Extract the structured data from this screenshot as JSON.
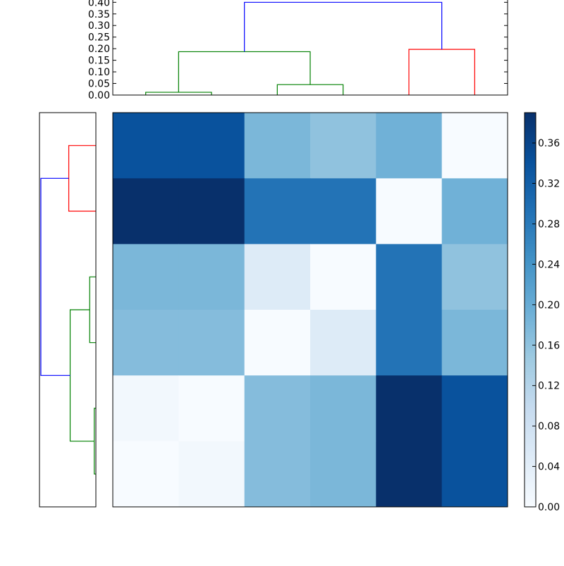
{
  "chart_data": [
    {
      "type": "dendrogram",
      "panel": "top",
      "orientation": "top",
      "title": "",
      "ylabel": "",
      "ylim": [
        0.0,
        0.41
      ],
      "yticks": [
        "0.00",
        "0.05",
        "0.10",
        "0.15",
        "0.20",
        "0.25",
        "0.30",
        "0.35",
        "0.40"
      ],
      "leaf_count": 6,
      "links": [
        {
          "left_leaf": 0,
          "right_leaf": 1,
          "height": 0.012,
          "color": "#008000"
        },
        {
          "left_leaf": 2,
          "right_leaf": 3,
          "height": 0.045,
          "color": "#008000"
        },
        {
          "left": "cluster(0,1)",
          "right": "cluster(2,3)",
          "height": 0.187,
          "color": "#008000"
        },
        {
          "left_leaf": 4,
          "right_leaf": 5,
          "height": 0.197,
          "color": "#ff0000"
        },
        {
          "left": "cluster(0-3)",
          "right": "cluster(4,5)",
          "height": 0.4,
          "color": "#0000ff"
        }
      ]
    },
    {
      "type": "dendrogram",
      "panel": "left",
      "orientation": "left",
      "leaf_count": 6,
      "links": [
        {
          "top_leaf": 0,
          "bottom_leaf": 1,
          "height": 0.197,
          "color": "#ff0000"
        },
        {
          "top_leaf": 2,
          "bottom_leaf": 3,
          "height": 0.045,
          "color": "#008000"
        },
        {
          "top_leaf": 4,
          "bottom_leaf": 5,
          "height": 0.012,
          "color": "#008000"
        },
        {
          "top": "cluster(2,3)",
          "bottom": "cluster(4,5)",
          "height": 0.187,
          "color": "#008000"
        },
        {
          "top": "cluster(0,1)",
          "bottom": "cluster(2-5)",
          "height": 0.4,
          "color": "#0000ff"
        }
      ]
    },
    {
      "type": "heatmap",
      "panel": "main",
      "colormap": "Blues",
      "rows": 6,
      "cols": 6,
      "values": [
        [
          0.34,
          0.34,
          0.18,
          0.16,
          0.19,
          0.0
        ],
        [
          0.39,
          0.39,
          0.29,
          0.29,
          0.0,
          0.19
        ],
        [
          0.18,
          0.18,
          0.05,
          0.0,
          0.29,
          0.16
        ],
        [
          0.17,
          0.17,
          0.0,
          0.05,
          0.29,
          0.18
        ],
        [
          0.01,
          0.0,
          0.17,
          0.18,
          0.39,
          0.34
        ],
        [
          0.0,
          0.01,
          0.17,
          0.18,
          0.39,
          0.34
        ]
      ],
      "xticks": [],
      "yticks": []
    },
    {
      "type": "colorbar",
      "panel": "right",
      "colormap": "Blues",
      "range": [
        0.0,
        0.39
      ],
      "ticks": [
        "0.00",
        "0.04",
        "0.08",
        "0.12",
        "0.16",
        "0.20",
        "0.24",
        "0.28",
        "0.32",
        "0.36"
      ]
    }
  ],
  "colors": {
    "link_blue": "#0000ff",
    "link_green": "#008000",
    "link_red": "#ff0000",
    "axis": "#000000",
    "background": "#ffffff",
    "cmap_stops": [
      "#f7fbff",
      "#deebf7",
      "#c6dbef",
      "#9ecae1",
      "#6baed6",
      "#4292c6",
      "#2171b5",
      "#08519c",
      "#08306b"
    ]
  }
}
